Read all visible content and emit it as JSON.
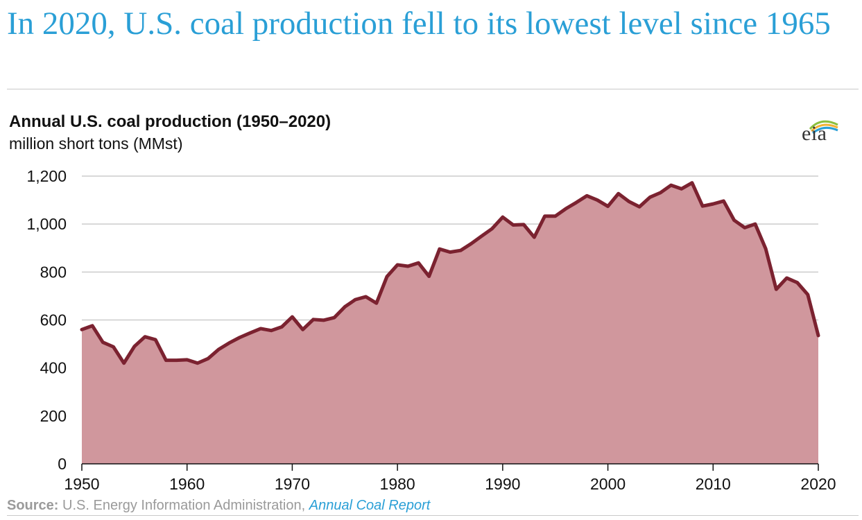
{
  "headline": "In 2020, U.S. coal production fell to its lowest level since 1965",
  "logo": {
    "text": "eia",
    "icon": "eia-logo"
  },
  "source": {
    "label": "Source:",
    "text": " U.S. Energy Information Administration, ",
    "link_text": "Annual Coal Report"
  },
  "colors": {
    "line": "#7b2230",
    "fill": "#d0979d",
    "headline": "#2a9fd6",
    "grid": "#cccccc"
  },
  "chart_data": {
    "type": "area",
    "title": "Annual U.S. coal production (1950–2020)",
    "subtitle": "million short tons (MMst)",
    "xlabel": "",
    "ylabel": "",
    "xlim": [
      1950,
      2020
    ],
    "ylim": [
      0,
      1200
    ],
    "x_ticks": [
      1950,
      1960,
      1970,
      1980,
      1990,
      2000,
      2010,
      2020
    ],
    "y_ticks": [
      0,
      200,
      400,
      600,
      800,
      1000,
      1200
    ],
    "y_tick_labels": [
      "0",
      "200",
      "400",
      "600",
      "800",
      "1,000",
      "1,200"
    ],
    "grid": "horizontal",
    "legend": "none",
    "x": [
      1950,
      1951,
      1952,
      1953,
      1954,
      1955,
      1956,
      1957,
      1958,
      1959,
      1960,
      1961,
      1962,
      1963,
      1964,
      1965,
      1966,
      1967,
      1968,
      1969,
      1970,
      1971,
      1972,
      1973,
      1974,
      1975,
      1976,
      1977,
      1978,
      1979,
      1980,
      1981,
      1982,
      1983,
      1984,
      1985,
      1986,
      1987,
      1988,
      1989,
      1990,
      1991,
      1992,
      1993,
      1994,
      1995,
      1996,
      1997,
      1998,
      1999,
      2000,
      2001,
      2002,
      2003,
      2004,
      2005,
      2006,
      2007,
      2008,
      2009,
      2010,
      2011,
      2012,
      2013,
      2014,
      2015,
      2016,
      2017,
      2018,
      2019,
      2020
    ],
    "values": [
      560,
      576,
      507,
      488,
      420,
      490,
      530,
      518,
      432,
      432,
      434,
      420,
      439,
      477,
      504,
      527,
      546,
      564,
      556,
      571,
      613,
      560,
      602,
      599,
      610,
      655,
      685,
      697,
      670,
      781,
      830,
      824,
      838,
      782,
      896,
      883,
      890,
      918,
      950,
      981,
      1029,
      996,
      998,
      945,
      1033,
      1033,
      1064,
      1090,
      1118,
      1100,
      1074,
      1127,
      1094,
      1072,
      1112,
      1131,
      1162,
      1147,
      1172,
      1075,
      1084,
      1096,
      1016,
      985,
      1000,
      897,
      728,
      775,
      756,
      706,
      535
    ]
  }
}
